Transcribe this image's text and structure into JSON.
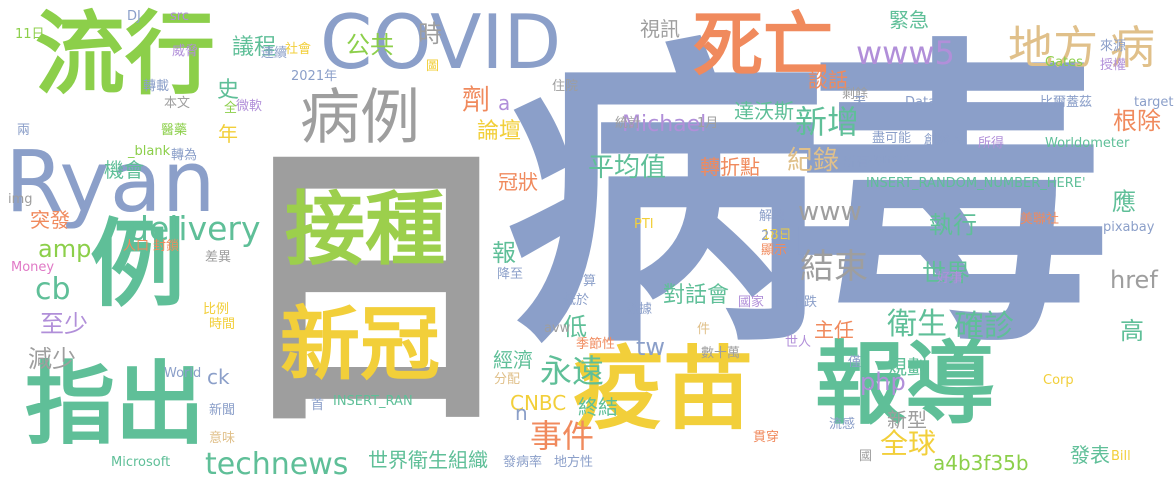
{
  "words": [
    {
      "text": "病",
      "color": "#8b9fc9"
    },
    {
      "text": "毒",
      "color": "#8b9fc9"
    },
    {
      "text": "日",
      "color": "#9e9e9e"
    },
    {
      "text": "接種",
      "color": "#9ccf4c"
    },
    {
      "text": "新冠",
      "color": "#f2cf3a"
    },
    {
      "text": "疫苗",
      "color": "#f2cf3a"
    },
    {
      "text": "報導",
      "color": "#5fbf98"
    },
    {
      "text": "流行",
      "color": "#8ccf4a"
    },
    {
      "text": "COVID",
      "color": "#8b9fc9"
    },
    {
      "text": "死亡",
      "color": "#f08a5d"
    },
    {
      "text": "Ryan",
      "color": "#8b9fc9"
    },
    {
      "text": "例",
      "color": "#5fbf98"
    },
    {
      "text": "指出",
      "color": "#5fbf98"
    },
    {
      "text": "病例",
      "color": "#9e9e9e"
    },
    {
      "text": "地方",
      "color": "#e0c08a"
    },
    {
      "text": "病",
      "color": "#e0c08a"
    },
    {
      "text": "www5",
      "color": "#b18fd9"
    },
    {
      "text": "delivery",
      "color": "#5fbf98"
    },
    {
      "text": "amp",
      "color": "#8ccf4a"
    },
    {
      "text": "cb",
      "color": "#5fbf98"
    },
    {
      "text": "至少",
      "color": "#b18fd9"
    },
    {
      "text": "減少",
      "color": "#9e9e9e"
    },
    {
      "text": "technews",
      "color": "#5fbf98"
    },
    {
      "text": "世界衛生組織",
      "color": "#5fbf98"
    },
    {
      "text": "事件",
      "color": "#f08a5d"
    },
    {
      "text": "永遠",
      "color": "#5fbf98"
    },
    {
      "text": "衛生",
      "color": "#5fbf98"
    },
    {
      "text": "確診",
      "color": "#5fbf98"
    },
    {
      "text": "全球",
      "color": "#f2cf3a"
    },
    {
      "text": "結束",
      "color": "#9e9e9e"
    },
    {
      "text": "新增",
      "color": "#5fbf98"
    },
    {
      "text": "平均值",
      "color": "#5fbf98"
    },
    {
      "text": "紀錄",
      "color": "#e0c08a"
    },
    {
      "text": "www",
      "color": "#9e9e9e"
    },
    {
      "text": "tw",
      "color": "#8b9fc9"
    },
    {
      "text": "php",
      "color": "#b18fd9"
    },
    {
      "text": "對話會",
      "color": "#5fbf98"
    },
    {
      "text": "轉折點",
      "color": "#f08a5d"
    },
    {
      "text": "Michael",
      "color": "#b18fd9"
    },
    {
      "text": "達沃斯",
      "color": "#5fbf98"
    },
    {
      "text": "史",
      "color": "#5fbf98"
    },
    {
      "text": "年",
      "color": "#f2cf3a"
    },
    {
      "text": "公共",
      "color": "#8ccf4a"
    },
    {
      "text": "時",
      "color": "#9e9e9e"
    },
    {
      "text": "議程",
      "color": "#5fbf98"
    },
    {
      "text": "機會",
      "color": "#5fbf98"
    },
    {
      "text": "突發",
      "color": "#f08a5d"
    },
    {
      "text": "緊急",
      "color": "#5fbf98"
    },
    {
      "text": "談話",
      "color": "#f08a5d"
    },
    {
      "text": "根除",
      "color": "#f08a5d"
    },
    {
      "text": "應",
      "color": "#5fbf98"
    },
    {
      "text": "執行",
      "color": "#5fbf98"
    },
    {
      "text": "世界",
      "color": "#5fbf98"
    },
    {
      "text": "href",
      "color": "#9e9e9e"
    },
    {
      "text": "高",
      "color": "#5fbf98"
    },
    {
      "text": "主任",
      "color": "#f08a5d"
    },
    {
      "text": "規劃",
      "color": "#5fbf98"
    },
    {
      "text": "新型",
      "color": "#9e9e9e"
    },
    {
      "text": "a4b3f35b",
      "color": "#8ccf4a"
    },
    {
      "text": "發表",
      "color": "#5fbf98"
    },
    {
      "text": "終結",
      "color": "#5fbf98"
    },
    {
      "text": "CNBC",
      "color": "#f2cf3a"
    },
    {
      "text": "經濟",
      "color": "#5fbf98"
    },
    {
      "text": "低",
      "color": "#5fbf98"
    },
    {
      "text": "報",
      "color": "#5fbf98"
    },
    {
      "text": "冠狀",
      "color": "#f08a5d"
    },
    {
      "text": "論壇",
      "color": "#f2cf3a"
    },
    {
      "text": "劑",
      "color": "#f08a5d"
    },
    {
      "text": "a",
      "color": "#b18fd9"
    },
    {
      "text": "n",
      "color": "#8b9fc9"
    },
    {
      "text": "ck",
      "color": "#8b9fc9"
    },
    {
      "text": "視訊",
      "color": "#9e9e9e"
    },
    {
      "text": "INSERT_RANDOM_NUMBER_HERE'",
      "color": "#5fbf98"
    },
    {
      "text": "INSERT_RAN",
      "color": "#5fbf98"
    },
    {
      "text": "Worldometer",
      "color": "#5fbf98"
    },
    {
      "text": "比爾蓋茲",
      "color": "#8b9fc9"
    },
    {
      "text": "target",
      "color": "#8b9fc9"
    },
    {
      "text": "Gates",
      "color": "#8ccf4a"
    },
    {
      "text": "Data",
      "color": "#8b9fc9"
    },
    {
      "text": "zoneid",
      "color": "#8b9fc9"
    },
    {
      "text": "盡可能",
      "color": "#8b9fc9"
    },
    {
      "text": "創辦人",
      "color": "#8b9fc9"
    },
    {
      "text": "所得",
      "color": "#b18fd9"
    },
    {
      "text": "所有人",
      "color": "#8b9fc9"
    },
    {
      "text": "剩餘",
      "color": "#9e9e9e"
    },
    {
      "text": "統計",
      "color": "#9e9e9e"
    },
    {
      "text": "1月",
      "color": "#9e9e9e"
    },
    {
      "text": "Omicron",
      "color": "#9e9e9e"
    },
    {
      "text": "2021年",
      "color": "#8b9fc9"
    },
    {
      "text": "社會",
      "color": "#f2cf3a"
    },
    {
      "text": "連續",
      "color": "#8b9fc9"
    },
    {
      "text": "微軟",
      "color": "#b18fd9"
    },
    {
      "text": "全",
      "color": "#8ccf4a"
    },
    {
      "text": "本文",
      "color": "#9e9e9e"
    },
    {
      "text": "醫藥",
      "color": "#8ccf4a"
    },
    {
      "text": "轉載",
      "color": "#8b9fc9"
    },
    {
      "text": "威脅",
      "color": "#b18fd9"
    },
    {
      "text": "兩",
      "color": "#8b9fc9"
    },
    {
      "text": "11日",
      "color": "#8ccf4a"
    },
    {
      "text": "DJ",
      "color": "#8b9fc9"
    },
    {
      "text": "src",
      "color": "#b18fd9"
    },
    {
      "text": "_blank",
      "color": "#8ccf4a"
    },
    {
      "text": "轉為",
      "color": "#8b9fc9"
    },
    {
      "text": "img",
      "color": "#9e9e9e"
    },
    {
      "text": "人口",
      "color": "#f08a5d"
    },
    {
      "text": "封鎖",
      "color": "#f08a5d"
    },
    {
      "text": "差異",
      "color": "#9e9e9e"
    },
    {
      "text": "Money",
      "color": "#e079c6"
    },
    {
      "text": "比例",
      "color": "#f2cf3a"
    },
    {
      "text": "時間",
      "color": "#f2cf3a"
    },
    {
      "text": "World",
      "color": "#8b9fc9"
    },
    {
      "text": "新聞",
      "color": "#8b9fc9"
    },
    {
      "text": "首",
      "color": "#8b9fc9"
    },
    {
      "text": "意味",
      "color": "#e0c08a"
    },
    {
      "text": "Microsoft",
      "color": "#5fbf98"
    },
    {
      "text": "發病率",
      "color": "#8b9fc9"
    },
    {
      "text": "地方性",
      "color": "#8b9fc9"
    },
    {
      "text": "國",
      "color": "#9e9e9e"
    },
    {
      "text": "Bill",
      "color": "#f2cf3a"
    },
    {
      "text": "貫穿",
      "color": "#f08a5d"
    },
    {
      "text": "流感",
      "color": "#8b9fc9"
    },
    {
      "text": "僅",
      "color": "#8b9fc9"
    },
    {
      "text": "Corp",
      "color": "#f2cf3a"
    },
    {
      "text": "世人",
      "color": "#b18fd9"
    },
    {
      "text": "數十萬",
      "color": "#9e9e9e"
    },
    {
      "text": "件",
      "color": "#e0c08a"
    },
    {
      "text": "季節性",
      "color": "#f08a5d"
    },
    {
      "text": "分配",
      "color": "#e0c08a"
    },
    {
      "text": "avw",
      "color": "#9e9e9e"
    },
    {
      "text": "降至",
      "color": "#8b9fc9"
    },
    {
      "text": "低於",
      "color": "#8b9fc9"
    },
    {
      "text": "數據",
      "color": "#8b9fc9"
    },
    {
      "text": "國家",
      "color": "#b18fd9"
    },
    {
      "text": "算",
      "color": "#8b9fc9"
    },
    {
      "text": "解決",
      "color": "#8b9fc9"
    },
    {
      "text": "PTI",
      "color": "#f2cf3a"
    },
    {
      "text": "18日",
      "color": "#f2cf3a"
    },
    {
      "text": "27日",
      "color": "#8b9fc9"
    },
    {
      "text": "顯示",
      "color": "#f08a5d"
    },
    {
      "text": "下跌",
      "color": "#8b9fc9"
    },
    {
      "text": "好事",
      "color": "#b18fd9"
    },
    {
      "text": "美聯社",
      "color": "#f08a5d"
    },
    {
      "text": "pixabay",
      "color": "#8b9fc9"
    },
    {
      "text": "來源",
      "color": "#8b9fc9"
    },
    {
      "text": "授權",
      "color": "#b18fd9"
    },
    {
      "text": "天",
      "color": "#8b9fc9"
    },
    {
      "text": "住院",
      "color": "#9e9e9e"
    },
    {
      "text": "圖",
      "color": "#f2cf3a"
    }
  ]
}
